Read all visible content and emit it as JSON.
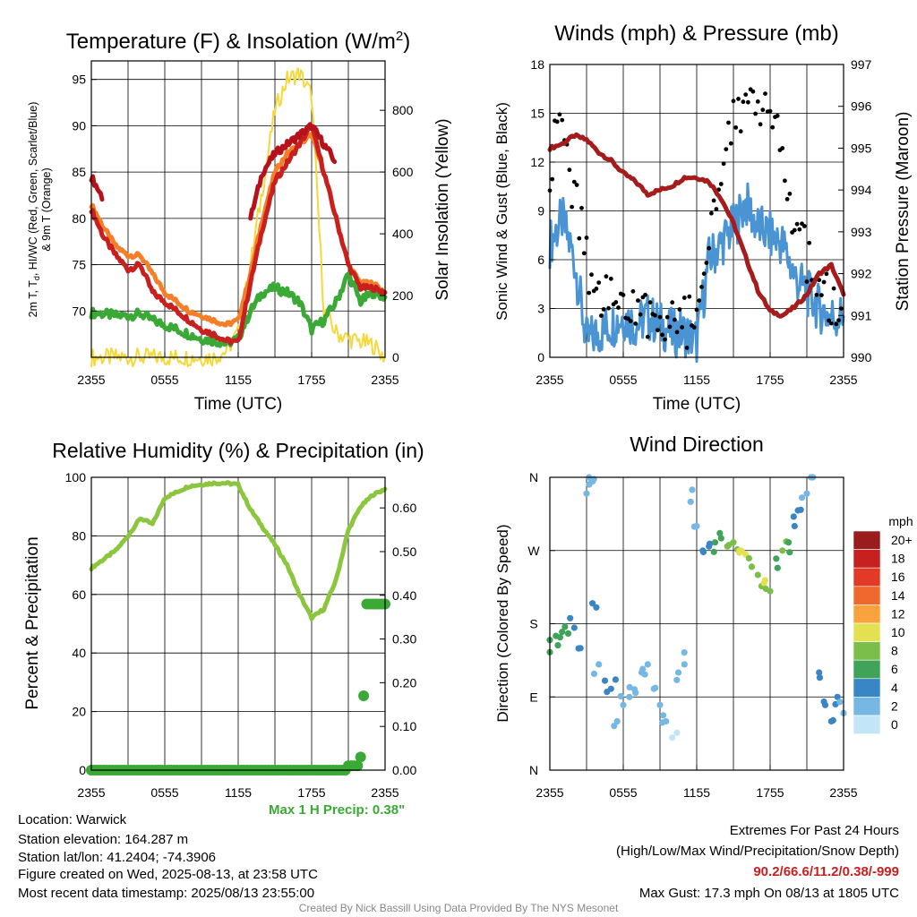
{
  "panels": {
    "temperature": {
      "title": "Temperature (F) & Insolation (W/m",
      "title_sup": "2",
      "title_close": ")",
      "ylabel_line1": "2m T, T",
      "ylabel_sub": "d",
      "ylabel_line1_rest": ", HI/WC (Red, Green, Scarlet/Blue)",
      "ylabel_line2": "& 9m T (Orange)",
      "y2label": "Solar Insolation (Yellow)",
      "xlabel": "Time (UTC)"
    },
    "winds": {
      "title": "Winds (mph) & Pressure (mb)",
      "ylabel": "Sonic Wind & Gust (Blue, Black)",
      "y2label": "Station Pressure (Maroon)",
      "xlabel": "Time (UTC)"
    },
    "humidity": {
      "title": "Relative Humidity (%) & Precipitation (in)",
      "ylabel": "Percent & Precipitation",
      "max_precip": "Max 1 H Precip: 0.38\""
    },
    "direction": {
      "title": "Wind Direction",
      "ylabel": "Direction (Colored By Speed)",
      "legend_title": "mph",
      "legend_labels": [
        "20+",
        "18",
        "16",
        "14",
        "12",
        "10",
        "8",
        "6",
        "4",
        "2",
        "0"
      ],
      "legend_colors": [
        "#9b1c1c",
        "#c8201f",
        "#e33a27",
        "#f0682e",
        "#f9a23e",
        "#e3e052",
        "#7bbf4a",
        "#3fa35a",
        "#3a86c4",
        "#77b7e3",
        "#c2e6f7"
      ]
    }
  },
  "colors": {
    "temp": "#b5121b",
    "dew": "#3aa935",
    "hi": "#c8201f",
    "t9": "#f57f29",
    "solar": "#f5d83a",
    "wind": "#4a94d4",
    "gust": "#000000",
    "pressure": "#a51c1c",
    "rh": "#8cc63f",
    "precip": "#3aa935",
    "extreme": "#c8201f",
    "footer": "#888888"
  },
  "info": {
    "location": "Location: Warwick",
    "elevation": "Station elevation: 164.287 m",
    "latlon": "Station lat/lon: 41.2404; -74.3906",
    "created": "Figure created on Wed, 2025-08-13, at 23:58 UTC",
    "recent": "Most recent data timestamp: 2025/08/13 23:55:00"
  },
  "extremes": {
    "title": "Extremes For Past 24 Hours",
    "subtitle": "(High/Low/Max Wind/Precipitation/Snow Depth)",
    "values": "90.2/66.6/11.2/0.38/-999",
    "gust": "Max Gust: 17.3 mph On 08/13 at 1805 UTC"
  },
  "footer": "Created By Nick Bassill Using Data Provided By The NYS Mesonet",
  "chart_data": [
    {
      "type": "line",
      "title": "Temperature (F) & Insolation (W/m2)",
      "xlabel": "Time (UTC)",
      "ylabel": "2m T, Td, HI/WC (Red, Green, Scarlet/Blue) & 9m T (Orange)",
      "y2label": "Solar Insolation (Yellow)",
      "x_ticks": [
        "2355",
        "0555",
        "1155",
        "1755",
        "2355"
      ],
      "x": [
        0,
        1,
        2,
        3,
        4,
        5,
        6,
        7,
        8,
        9,
        10,
        11,
        12,
        13,
        14,
        15,
        16,
        17,
        18,
        19,
        20,
        21,
        22,
        23,
        24
      ],
      "ylim": [
        65,
        97
      ],
      "y_ticks": [
        70,
        75,
        80,
        85,
        90,
        95
      ],
      "y2lim": [
        0,
        960
      ],
      "y2_ticks": [
        0,
        200,
        400,
        600,
        800
      ],
      "grid": true,
      "series": [
        {
          "name": "2m T",
          "axis": "y",
          "values": [
            84.5,
            82,
            null,
            null,
            null,
            null,
            null,
            null,
            null,
            null,
            null,
            null,
            null,
            80,
            85,
            87,
            88,
            89,
            90,
            88,
            86,
            null,
            null,
            null,
            null
          ]
        },
        {
          "name": "HI/WC",
          "axis": "y",
          "values": [
            81,
            78,
            76,
            74.5,
            75,
            72,
            71,
            70,
            69,
            68,
            67.5,
            66.8,
            66.6,
            73,
            79,
            84,
            86,
            88,
            90,
            85,
            80,
            75,
            72.5,
            72.5,
            72
          ]
        },
        {
          "name": "9m T",
          "axis": "y",
          "values": [
            81.5,
            79,
            77,
            76,
            76,
            74,
            72,
            71,
            70,
            69.5,
            69,
            68.5,
            69,
            74,
            80,
            85,
            87,
            88,
            89,
            85,
            80,
            75,
            73,
            73,
            72
          ]
        },
        {
          "name": "Td",
          "axis": "y",
          "values": [
            69.8,
            69.7,
            69.5,
            69.5,
            69.7,
            69,
            68.5,
            68,
            67.5,
            67,
            66.8,
            66.5,
            67,
            70,
            72,
            72.5,
            72,
            71,
            68,
            69,
            71,
            74,
            71,
            72,
            71.5
          ]
        },
        {
          "name": "Solar",
          "axis": "y2",
          "values": [
            0,
            0,
            0,
            0,
            0,
            0,
            0,
            0,
            0,
            0,
            0,
            20,
            80,
            300,
            550,
            800,
            900,
            920,
            850,
            150,
            80,
            60,
            50,
            40,
            0
          ]
        }
      ]
    },
    {
      "type": "line",
      "title": "Winds (mph) & Pressure (mb)",
      "xlabel": "Time (UTC)",
      "ylabel": "Sonic Wind & Gust (Blue, Black)",
      "y2label": "Station Pressure (Maroon)",
      "x_ticks": [
        "2355",
        "0555",
        "1155",
        "1755",
        "2355"
      ],
      "x": [
        0,
        1,
        2,
        3,
        4,
        5,
        6,
        7,
        8,
        9,
        10,
        11,
        12,
        13,
        14,
        15,
        16,
        17,
        18,
        19,
        20,
        21,
        22,
        23,
        24
      ],
      "ylim": [
        0,
        18
      ],
      "y_ticks": [
        0,
        3,
        6,
        9,
        12,
        15,
        18
      ],
      "y2lim": [
        990,
        997
      ],
      "y2_ticks": [
        990,
        991,
        992,
        993,
        994,
        995,
        996,
        997
      ],
      "grid": true,
      "series": [
        {
          "name": "Sonic Wind",
          "axis": "y",
          "values": [
            7,
            8.5,
            6,
            1,
            1.5,
            2,
            2.5,
            2,
            2.5,
            2,
            1.5,
            1.5,
            1,
            6,
            7,
            8,
            9.5,
            8,
            7.5,
            7,
            5,
            4,
            3,
            2.5,
            2.5
          ]
        },
        {
          "name": "Gust",
          "axis": "y",
          "values": [
            12,
            14,
            10,
            6,
            3.5,
            4,
            3,
            2.5,
            3,
            2.5,
            2,
            2.5,
            1.5,
            8,
            12,
            15,
            16,
            14,
            16,
            13,
            8,
            6,
            4,
            3,
            2.5
          ]
        },
        {
          "name": "Pressure",
          "axis": "y2",
          "values": [
            995,
            995.1,
            995.3,
            995.2,
            994.9,
            994.7,
            994.4,
            994.2,
            993.9,
            994,
            994.1,
            994.3,
            994.3,
            994.2,
            993.8,
            993.2,
            992.4,
            991.6,
            991.1,
            991,
            991.2,
            991.5,
            992,
            992.2,
            991.5
          ]
        }
      ]
    },
    {
      "type": "line",
      "title": "Relative Humidity (%) & Precipitation (in)",
      "ylabel": "Percent & Precipitation",
      "x_ticks": [
        "2355",
        "0555",
        "1155",
        "1755",
        "2355"
      ],
      "x": [
        0,
        1,
        2,
        3,
        4,
        5,
        6,
        7,
        8,
        9,
        10,
        11,
        12,
        13,
        14,
        15,
        16,
        17,
        18,
        19,
        20,
        21,
        22,
        23,
        24
      ],
      "ylim": [
        0,
        100
      ],
      "y_ticks": [
        0,
        20,
        40,
        60,
        80,
        100
      ],
      "y2lim": [
        0,
        0.67
      ],
      "y2_ticks": [
        0.0,
        0.1,
        0.2,
        0.3,
        0.4,
        0.5,
        0.6
      ],
      "grid": true,
      "series": [
        {
          "name": "Relative Humidity",
          "axis": "y",
          "values": [
            69,
            72,
            75,
            80,
            86,
            84,
            93,
            95,
            97,
            97.5,
            98,
            98,
            97.5,
            89,
            83,
            77,
            70,
            60,
            52,
            55,
            65,
            82,
            90,
            94,
            96
          ]
        },
        {
          "name": "Precipitation",
          "axis": "y2",
          "values": [
            0,
            0,
            0,
            0,
            0,
            0,
            0,
            0,
            0,
            0,
            0,
            0,
            0,
            0,
            0,
            0,
            0,
            0,
            0,
            0,
            0,
            0.01,
            0.38,
            0.38,
            0.38
          ]
        }
      ]
    },
    {
      "type": "scatter",
      "title": "Wind Direction",
      "ylabel": "Direction (Colored By Speed)",
      "x_ticks": [
        "2355",
        "0555",
        "1155",
        "1755",
        "2355"
      ],
      "y_ticks": [
        "N",
        "E",
        "S",
        "W",
        "N"
      ],
      "ylim": [
        0,
        360
      ],
      "color_scale": {
        "label": "mph",
        "min": 0,
        "max": 20
      },
      "points": [
        [
          0,
          160,
          5
        ],
        [
          0.5,
          165,
          6
        ],
        [
          1,
          170,
          6
        ],
        [
          1.5,
          168,
          5
        ],
        [
          2,
          175,
          4
        ],
        [
          2.5,
          150,
          3
        ],
        [
          3,
          340,
          1
        ],
        [
          3.5,
          355,
          2
        ],
        [
          3.2,
          360,
          1
        ],
        [
          3.8,
          200,
          3
        ],
        [
          4,
          130,
          2
        ],
        [
          4.5,
          110,
          3
        ],
        [
          5,
          100,
          3
        ],
        [
          5.5,
          60,
          2
        ],
        [
          6,
          80,
          1
        ],
        [
          6.5,
          90,
          2
        ],
        [
          7,
          95,
          1
        ],
        [
          7.5,
          120,
          1
        ],
        [
          8,
          130,
          2
        ],
        [
          8.5,
          100,
          1
        ],
        [
          9,
          80,
          1
        ],
        [
          9.5,
          60,
          1
        ],
        [
          10,
          40,
          0
        ],
        [
          10.5,
          120,
          1
        ],
        [
          11,
          130,
          2
        ],
        [
          11.5,
          330,
          1
        ],
        [
          12,
          300,
          2
        ],
        [
          12.5,
          270,
          3
        ],
        [
          13,
          275,
          4
        ],
        [
          13.5,
          280,
          5
        ],
        [
          14,
          285,
          6
        ],
        [
          14.5,
          275,
          7
        ],
        [
          15,
          280,
          8
        ],
        [
          15.5,
          270,
          9
        ],
        [
          16,
          265,
          10
        ],
        [
          16.5,
          250,
          8
        ],
        [
          17,
          240,
          7
        ],
        [
          17.5,
          230,
          9
        ],
        [
          18,
          220,
          8
        ],
        [
          18.5,
          260,
          6
        ],
        [
          19,
          270,
          7
        ],
        [
          19.5,
          280,
          5
        ],
        [
          20,
          300,
          4
        ],
        [
          20.5,
          320,
          3
        ],
        [
          21,
          340,
          2
        ],
        [
          21.5,
          360,
          1
        ],
        [
          22,
          120,
          3
        ],
        [
          22.5,
          80,
          4
        ],
        [
          23,
          60,
          3
        ],
        [
          23.5,
          90,
          4
        ],
        [
          24,
          70,
          2
        ]
      ]
    }
  ]
}
